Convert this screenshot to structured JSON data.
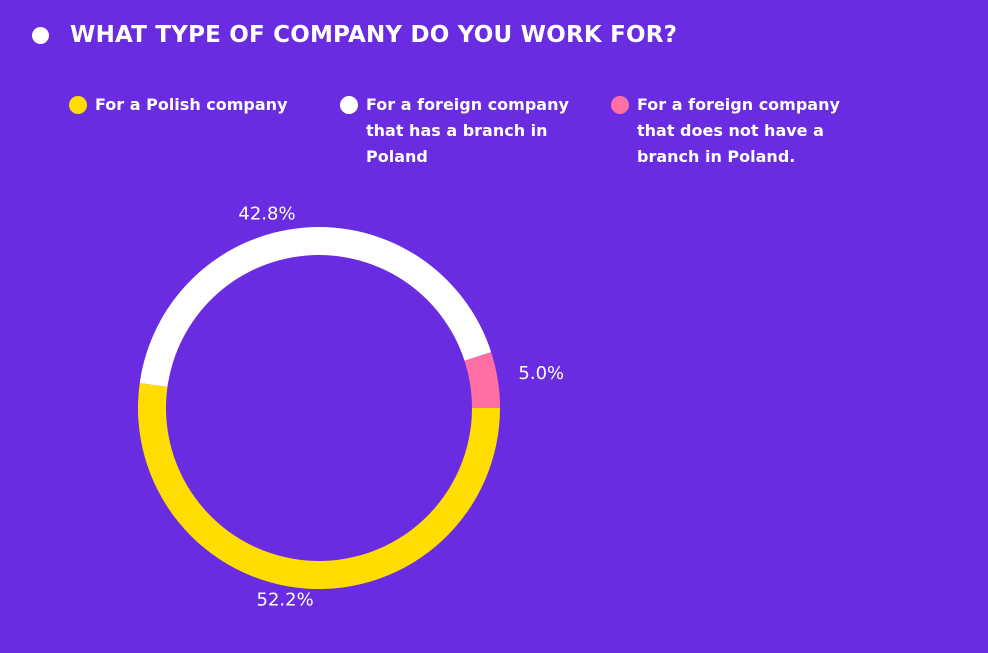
{
  "header": {
    "title": "WHAT TYPE OF COMPANY DO YOU WORK FOR?"
  },
  "chart_data": {
    "type": "pie",
    "donut": true,
    "title": "WHAT TYPE OF COMPANY DO YOU WORK FOR?",
    "legend_position": "top",
    "series": [
      {
        "name": "For a Polish company",
        "value": 52.2,
        "label": "52.2%",
        "color": "#ffdd00"
      },
      {
        "name": "For a foreign company that has a branch in Poland",
        "value": 42.8,
        "label": "42.8%",
        "color": "#ffffff"
      },
      {
        "name": "For a foreign company that does not have a branch in Poland.",
        "value": 5.0,
        "label": "5.0%",
        "color": "#ff6fa4"
      }
    ]
  },
  "colors": {
    "background": "#6a2ce1",
    "text": "#ffffff"
  }
}
